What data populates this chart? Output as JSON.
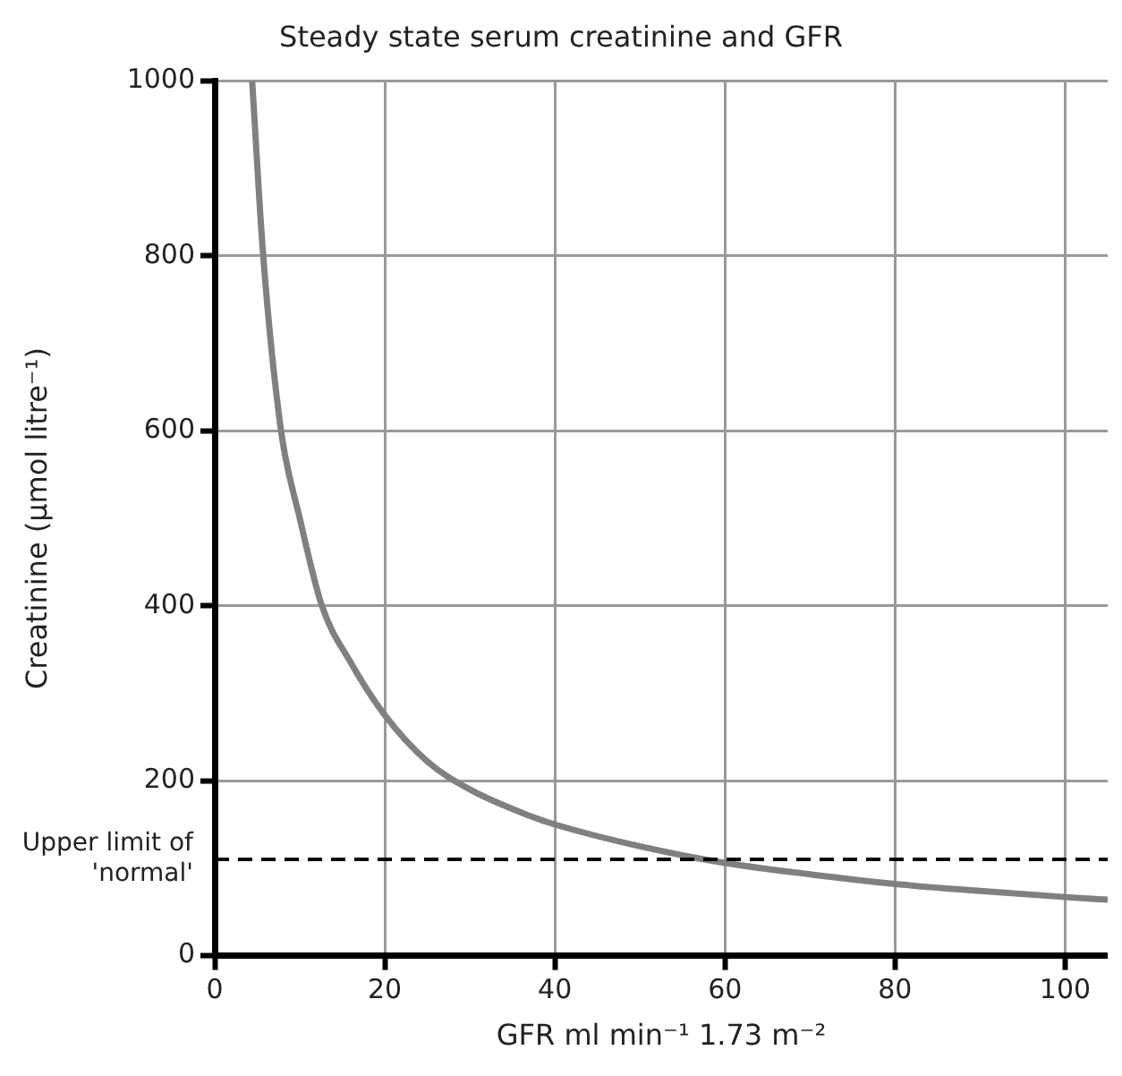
{
  "chart_data": {
    "type": "line",
    "title": "Steady state serum creatinine and GFR",
    "xlabel": "GFR ml min⁻¹ 1.73 m⁻²",
    "ylabel": "Creatinine (μmol litre⁻¹)",
    "series": [
      {
        "color": "#808080",
        "x": [
          4.4,
          5.7,
          7.8,
          10,
          12.6,
          16,
          20,
          25,
          30,
          37,
          40,
          50,
          60,
          70,
          80,
          90,
          100,
          105
        ],
        "values": [
          1000,
          800,
          600,
          500,
          400,
          335,
          275,
          222,
          190,
          160,
          150,
          125,
          106,
          93,
          82,
          74,
          67,
          64
        ]
      }
    ],
    "xlim": [
      0,
      105
    ],
    "xticks": [
      0,
      20,
      40,
      60,
      80,
      100
    ],
    "ylim": [
      0,
      1000
    ],
    "yticks": [
      0,
      200,
      400,
      600,
      800,
      1000
    ],
    "ref_lines": [
      {
        "axis": "y",
        "value": 110,
        "label": "Upper limit of 'normal'",
        "color": "#000000",
        "line_style": "dashed"
      }
    ],
    "grid": true,
    "legend": false,
    "marker": "none",
    "line_style": "solid"
  }
}
